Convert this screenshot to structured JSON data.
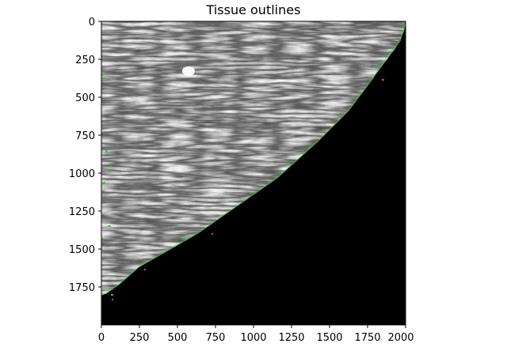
{
  "figure": {
    "title": "Tissue outlines",
    "image_description_visible": "grayscale textured tissue with black triangular background region and green/magenta outline specks"
  },
  "axes": {
    "x_ticks": [
      "0",
      "250",
      "500",
      "750",
      "1000",
      "1250",
      "1500",
      "1750",
      "2000"
    ],
    "y_ticks": [
      "0",
      "250",
      "500",
      "750",
      "1000",
      "1250",
      "1500",
      "1750"
    ],
    "x_range": [
      0,
      2000
    ],
    "y_range": [
      2000,
      0
    ]
  },
  "colors": {
    "background_mask": "#000000",
    "outline": "#33cc33",
    "speck": "#cc33cc"
  }
}
